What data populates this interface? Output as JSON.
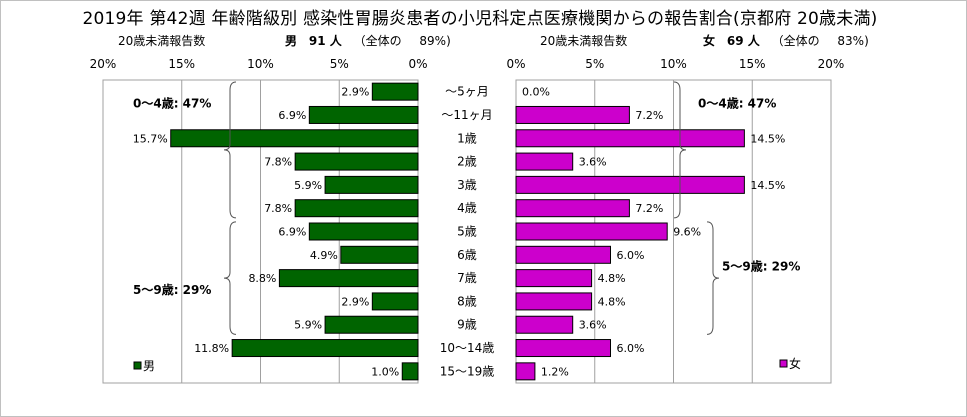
{
  "title": "2019年 第42週 年齢階級別 感染性胃腸炎患者の小児科定点医療機関からの報告割合(京都府 20歳未満)",
  "left_panel": {
    "axis_caption": "20歳未満報告数",
    "sex_label": "男",
    "count_label": "91 人",
    "total_prefix": "（全体の",
    "total_pct": "89%)",
    "legend": "男",
    "group_label_0_4": "0～4歳: 47%",
    "group_label_5_9": "5～9歳: 29%"
  },
  "right_panel": {
    "axis_caption": "20歳未満報告数",
    "sex_label": "女",
    "count_label": "69 人",
    "total_prefix": "（全体の",
    "total_pct": "83%)",
    "legend": "女",
    "group_label_0_4": "0～4歳: 47%",
    "group_label_5_9": "5～9歳: 29%"
  },
  "colors": {
    "male_bar": "#006400",
    "female_bar": "#cc00cc",
    "grid": "#a0a0a0",
    "outline": "#000000"
  },
  "chart_data": {
    "type": "bar",
    "orientation": "horizontal-butterfly",
    "categories": [
      "～5ヶ月",
      "～11ヶ月",
      "1歳",
      "2歳",
      "3歳",
      "4歳",
      "5歳",
      "6歳",
      "7歳",
      "8歳",
      "9歳",
      "10～14歳",
      "15～19歳"
    ],
    "xlim": [
      0,
      20
    ],
    "x_tick_labels_left": [
      "20%",
      "15%",
      "10%",
      "5%",
      "0%"
    ],
    "x_tick_labels_right": [
      "0%",
      "5%",
      "10%",
      "15%",
      "20%"
    ],
    "grid": true,
    "series": [
      {
        "name": "男",
        "values": [
          2.9,
          6.9,
          15.7,
          7.8,
          5.9,
          7.8,
          6.9,
          4.9,
          8.8,
          2.9,
          5.9,
          11.8,
          1.0
        ],
        "labels": [
          "2.9%",
          "6.9%",
          "15.7%",
          "7.8%",
          "5.9%",
          "7.8%",
          "6.9%",
          "4.9%",
          "8.8%",
          "2.9%",
          "5.9%",
          "11.8%",
          "1.0%"
        ]
      },
      {
        "name": "女",
        "values": [
          0.0,
          7.2,
          14.5,
          3.6,
          14.5,
          7.2,
          9.6,
          6.0,
          4.8,
          4.8,
          3.6,
          6.0,
          1.2
        ],
        "labels": [
          "0.0%",
          "7.2%",
          "14.5%",
          "3.6%",
          "14.5%",
          "7.2%",
          "9.6%",
          "6.0%",
          "4.8%",
          "4.8%",
          "3.6%",
          "6.0%",
          "1.2%"
        ]
      }
    ]
  }
}
